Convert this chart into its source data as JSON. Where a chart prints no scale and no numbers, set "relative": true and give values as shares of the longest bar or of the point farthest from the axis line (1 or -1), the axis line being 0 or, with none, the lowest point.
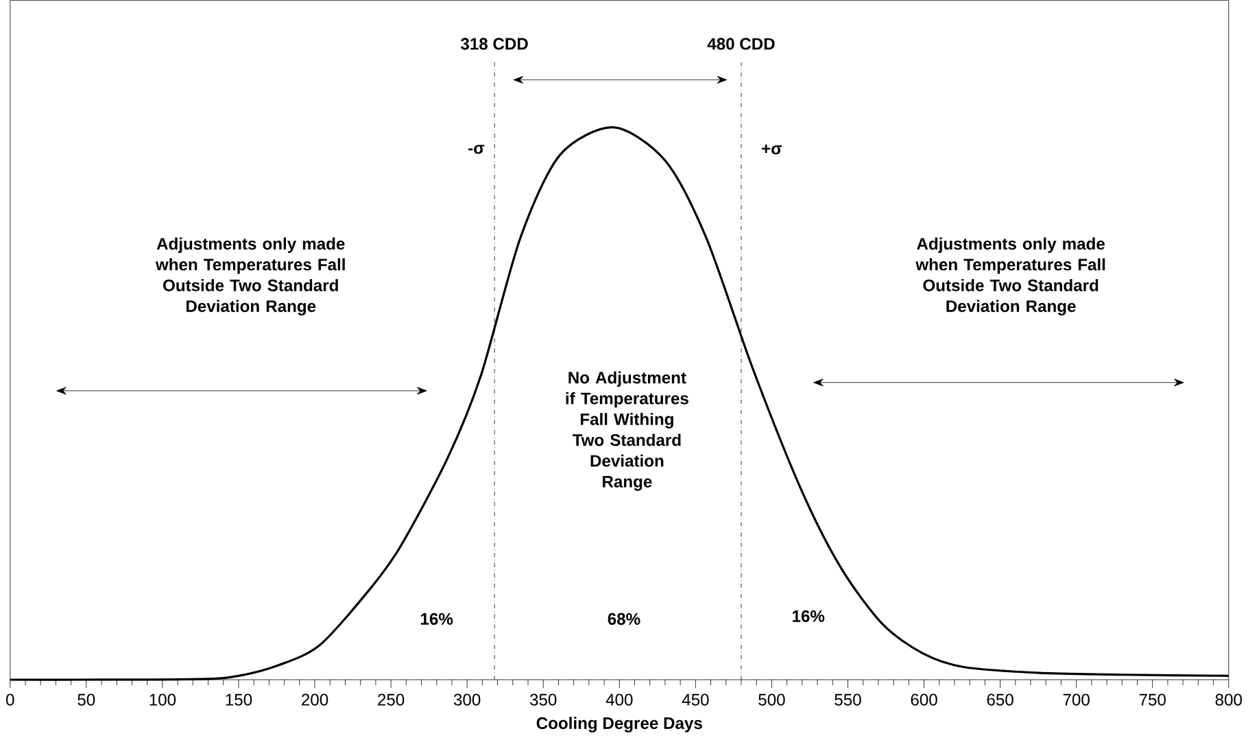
{
  "chart_data": {
    "type": "line",
    "relative": true,
    "xlabel": "Cooling Degree Days",
    "color": "#000000",
    "x": [
      0,
      44,
      124,
      150,
      176,
      203,
      235,
      256,
      287,
      309,
      335,
      361,
      396,
      430,
      457,
      488,
      520,
      546,
      573,
      599,
      626,
      678,
      731,
      800
    ],
    "values": [
      0,
      0,
      0.001,
      0.007,
      0.026,
      0.062,
      0.16,
      0.24,
      0.4,
      0.55,
      0.8,
      0.95,
      1,
      0.94,
      0.8,
      0.56,
      0.34,
      0.2,
      0.1,
      0.048,
      0.023,
      0.012,
      0.009,
      0.007
    ],
    "xlim": [
      0,
      800
    ],
    "xticks": [
      0,
      50,
      100,
      150,
      200,
      250,
      300,
      350,
      400,
      450,
      500,
      550,
      600,
      650,
      700,
      750,
      800
    ],
    "ref_lines": [
      {
        "axis": "x",
        "value": 318,
        "label": "318 CDD"
      },
      {
        "axis": "x",
        "value": 480,
        "label": "480 CDD"
      }
    ],
    "annotations": [
      "Adjustments only made when Temperatures Fall Outside Two Standard Deviation Range",
      "Adjustments only made when Temperatures Fall Outside Two Standard Deviation Range",
      "No Adjustment if Temperatures Fall Withing Two Standard Deviation Range",
      "-σ",
      "+σ",
      "16%",
      "68%",
      "16%"
    ]
  }
}
